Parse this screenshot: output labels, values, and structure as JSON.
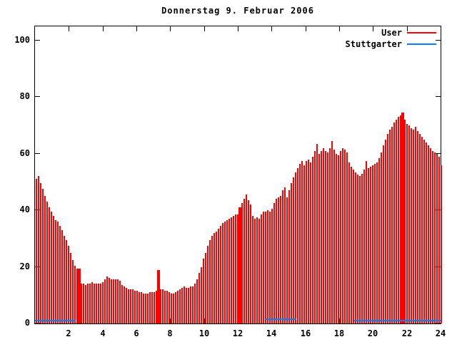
{
  "title": "Donnerstag 9. Februar 2006",
  "legend": {
    "position": "top-right-inside",
    "entries": [
      {
        "label": "User",
        "color": "#ff0000"
      },
      {
        "label": "Stuttgarter",
        "color": "#0080ff"
      }
    ]
  },
  "chart_data": {
    "type": "bar",
    "subtype": "impulses-time-series",
    "title": "Donnerstag 9. Februar 2006",
    "xlabel": "",
    "ylabel": "",
    "x_axis": {
      "min": 0,
      "max": 24,
      "tick_labels": [
        "2",
        "4",
        "6",
        "8",
        "10",
        "12",
        "14",
        "16",
        "18",
        "20",
        "22",
        "24"
      ],
      "tick_values": [
        2,
        4,
        6,
        8,
        10,
        12,
        14,
        16,
        18,
        20,
        22,
        24
      ]
    },
    "y_axis": {
      "min": 0,
      "max": 105,
      "tick_labels": [
        "0",
        "20",
        "40",
        "60",
        "80",
        "100"
      ],
      "tick_values": [
        0,
        20,
        40,
        60,
        80,
        100
      ]
    },
    "grid": false,
    "series": [
      {
        "name": "User",
        "style": "impulses",
        "color": "#ff0000",
        "x_step_hours": 0.1263,
        "values": [
          51,
          52,
          49.5,
          47.5,
          45,
          43,
          41,
          39.5,
          38,
          36.5,
          36,
          34.5,
          33,
          31,
          29.5,
          27.5,
          25,
          22.5,
          20.5,
          19.5,
          19.5,
          14,
          14,
          13.5,
          14,
          14,
          14.5,
          14,
          14,
          14,
          14,
          14.5,
          15.5,
          16.5,
          16,
          15.5,
          15.5,
          15.5,
          15.5,
          15,
          13.5,
          13,
          12.5,
          12,
          12,
          12,
          11.5,
          11.5,
          11,
          11,
          10.5,
          10.5,
          10.5,
          11,
          11,
          11,
          11.5,
          19,
          12,
          12,
          11.5,
          11.5,
          11,
          10.5,
          10.5,
          11,
          11.5,
          12,
          12.5,
          13,
          12.5,
          12.5,
          13,
          13,
          14,
          15.5,
          18,
          20,
          23,
          25,
          27.5,
          29.5,
          31,
          32,
          32.5,
          33.5,
          34.5,
          35.5,
          36,
          36.5,
          37,
          37.5,
          38,
          38.5,
          38.5,
          41,
          42.5,
          44,
          45.5,
          43.5,
          42,
          38,
          37,
          37.5,
          37,
          38.5,
          39.5,
          39.5,
          40,
          39.5,
          40.5,
          42.5,
          44,
          44.5,
          45,
          47,
          48,
          44.5,
          47,
          49.5,
          51.5,
          53.5,
          55,
          56.5,
          57.5,
          56,
          57.5,
          58,
          57,
          59,
          61,
          63.5,
          60,
          61,
          62,
          61,
          60.5,
          62,
          64.5,
          61.5,
          60,
          59.5,
          61,
          62,
          61.5,
          60.5,
          57,
          55.5,
          54.5,
          53.5,
          52.5,
          52,
          53,
          54.5,
          57.5,
          55,
          55.5,
          56,
          56.5,
          57,
          58.5,
          60.5,
          63,
          65,
          67,
          68.5,
          69.5,
          71,
          72,
          73,
          73.5,
          74.5,
          72,
          70.5,
          70,
          69,
          68.5,
          69.5,
          68,
          67,
          66,
          65,
          64,
          63,
          62,
          61,
          60.5,
          60,
          59,
          56
        ],
        "wide_bar_indices": [
          20,
          57,
          95,
          171
        ]
      },
      {
        "name": "Stuttgarter",
        "style": "steps",
        "color": "#0080ff",
        "segments": [
          {
            "from_hour": 0,
            "to_hour": 2.4,
            "value": 1
          },
          {
            "from_hour": 2.4,
            "to_hour": 13.65,
            "value": 0
          },
          {
            "from_hour": 13.65,
            "to_hour": 15.45,
            "value": 1.5
          },
          {
            "from_hour": 15.45,
            "to_hour": 18.9,
            "value": 0
          },
          {
            "from_hour": 18.9,
            "to_hour": 24,
            "value": 1
          }
        ]
      }
    ]
  }
}
